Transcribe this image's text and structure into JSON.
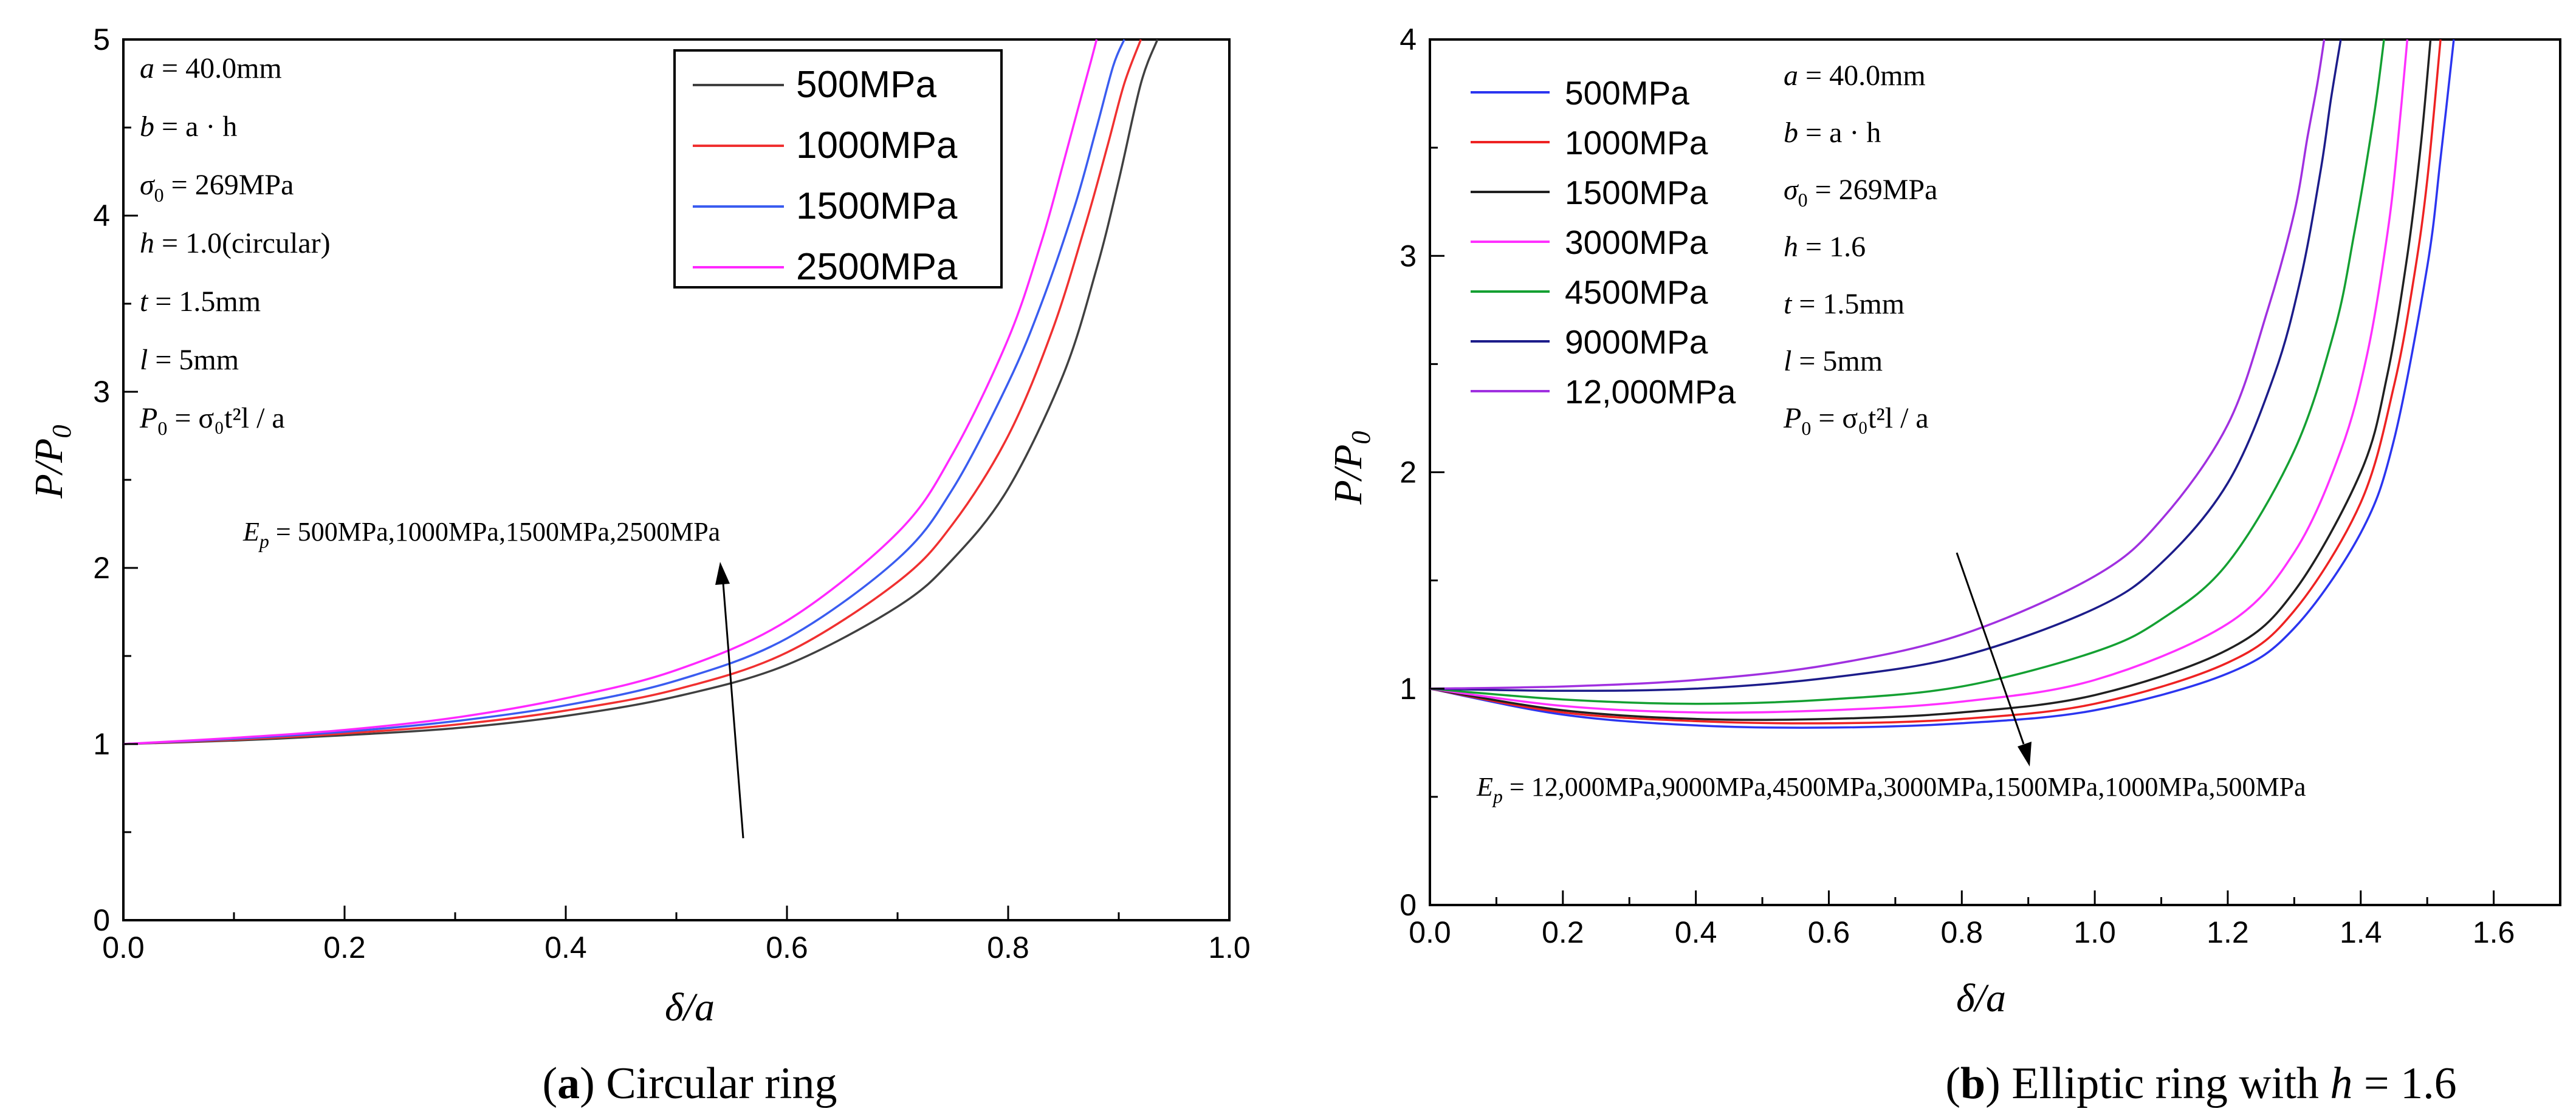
{
  "chart_data": [
    {
      "type": "line",
      "caption_label": "a",
      "caption_text": "Circular ring",
      "xlabel": "δ/a",
      "ylabel": "P/P",
      "ylabel_sub": "0",
      "xlim": [
        0,
        1.0
      ],
      "ylim": [
        0,
        5
      ],
      "xticks": [
        "0.0",
        "0.2",
        "0.4",
        "0.6",
        "0.8",
        "1.0"
      ],
      "yticks": [
        "0",
        "1",
        "2",
        "3",
        "4",
        "5"
      ],
      "legend_position": "top-right",
      "params": [
        {
          "var": "a",
          "rest": " = 40.0mm"
        },
        {
          "var": "b",
          "rest": " = a · h"
        },
        {
          "var": "σ",
          "sub": "0",
          "rest": " = 269MPa"
        },
        {
          "var": "h",
          "rest": " = 1.0(circular)"
        },
        {
          "var": "t",
          "rest": " = 1.5mm"
        },
        {
          "var": "l",
          "rest": " = 5mm"
        },
        {
          "var": "P",
          "sub": "0",
          "rest": " = σ₀t²l / a"
        }
      ],
      "annotation": {
        "var": "E",
        "sub": "p",
        "rest": " = 500MPa,1000MPa,1500MPa,2500MPa"
      },
      "series": [
        {
          "name": "500MPa",
          "color": "#404040",
          "x": [
            0,
            0.1,
            0.2,
            0.3,
            0.4,
            0.5,
            0.6,
            0.7,
            0.75,
            0.8,
            0.85,
            0.88,
            0.9,
            0.92,
            0.935
          ],
          "y": [
            1.0,
            1.02,
            1.05,
            1.09,
            1.16,
            1.27,
            1.45,
            1.78,
            2.05,
            2.45,
            3.1,
            3.7,
            4.2,
            4.75,
            5.0
          ]
        },
        {
          "name": "1000MPa",
          "color": "#f03030",
          "x": [
            0,
            0.1,
            0.2,
            0.3,
            0.4,
            0.5,
            0.6,
            0.7,
            0.75,
            0.8,
            0.84,
            0.87,
            0.89,
            0.905,
            0.92
          ],
          "y": [
            1.0,
            1.025,
            1.06,
            1.11,
            1.19,
            1.31,
            1.52,
            1.92,
            2.25,
            2.75,
            3.35,
            3.95,
            4.4,
            4.75,
            5.0
          ]
        },
        {
          "name": "1500MPa",
          "color": "#3a5cf0",
          "x": [
            0,
            0.1,
            0.2,
            0.3,
            0.4,
            0.5,
            0.6,
            0.7,
            0.75,
            0.8,
            0.83,
            0.86,
            0.88,
            0.895,
            0.905
          ],
          "y": [
            1.0,
            1.03,
            1.07,
            1.13,
            1.22,
            1.36,
            1.6,
            2.05,
            2.45,
            3.05,
            3.5,
            4.05,
            4.5,
            4.85,
            5.0
          ]
        },
        {
          "name": "2500MPa",
          "color": "#ff28ff",
          "x": [
            0,
            0.1,
            0.2,
            0.3,
            0.4,
            0.5,
            0.6,
            0.7,
            0.75,
            0.8,
            0.83,
            0.85,
            0.865,
            0.875,
            0.88
          ],
          "y": [
            1.0,
            1.035,
            1.08,
            1.15,
            1.26,
            1.42,
            1.7,
            2.2,
            2.65,
            3.3,
            3.85,
            4.3,
            4.65,
            4.88,
            5.0
          ]
        }
      ]
    },
    {
      "type": "line",
      "caption_label": "b",
      "caption_text": "Elliptic ring with",
      "caption_var": "h",
      "caption_tail": " = 1.6",
      "xlabel": "δ/a",
      "ylabel": "P/P",
      "ylabel_sub": "0",
      "xlim": [
        0,
        1.7
      ],
      "ylim": [
        0,
        4
      ],
      "xticks": [
        "0.0",
        "0.2",
        "0.4",
        "0.6",
        "0.8",
        "1.0",
        "1.2",
        "1.4",
        "1.6"
      ],
      "yticks": [
        "0",
        "1",
        "2",
        "3",
        "4"
      ],
      "legend_position": "top-left",
      "params": [
        {
          "var": "a",
          "rest": " = 40.0mm"
        },
        {
          "var": "b",
          "rest": " = a · h"
        },
        {
          "var": "σ",
          "sub": "0",
          "rest": " = 269MPa"
        },
        {
          "var": "h",
          "rest": " = 1.6"
        },
        {
          "var": "t",
          "rest": " = 1.5mm"
        },
        {
          "var": "l",
          "rest": " = 5mm"
        },
        {
          "var": "P",
          "sub": "0",
          "rest": " = σ₀t²l / a"
        }
      ],
      "annotation": {
        "var": "E",
        "sub": "p",
        "rest": " = 12,000MPa,9000MPa,4500MPa,3000MPa,1500MPa,1000MPa,500MPa"
      },
      "series": [
        {
          "name": "500MPa",
          "color": "#2b35f0",
          "x": [
            0,
            0.2,
            0.4,
            0.6,
            0.8,
            1.0,
            1.2,
            1.3,
            1.4,
            1.45,
            1.5,
            1.52,
            1.54
          ],
          "y": [
            1.0,
            0.88,
            0.83,
            0.82,
            0.84,
            0.9,
            1.07,
            1.28,
            1.72,
            2.15,
            2.95,
            3.45,
            4.0
          ]
        },
        {
          "name": "1000MPa",
          "color": "#ee2222",
          "x": [
            0,
            0.2,
            0.4,
            0.6,
            0.8,
            1.0,
            1.2,
            1.3,
            1.4,
            1.45,
            1.48,
            1.5,
            1.52
          ],
          "y": [
            1.0,
            0.89,
            0.85,
            0.84,
            0.86,
            0.93,
            1.12,
            1.36,
            1.86,
            2.4,
            2.9,
            3.35,
            4.0
          ]
        },
        {
          "name": "1500MPa",
          "color": "#202020",
          "x": [
            0,
            0.2,
            0.4,
            0.6,
            0.8,
            1.0,
            1.2,
            1.3,
            1.4,
            1.44,
            1.47,
            1.49,
            1.505
          ],
          "y": [
            1.0,
            0.9,
            0.86,
            0.86,
            0.89,
            0.97,
            1.18,
            1.45,
            2.0,
            2.45,
            3.0,
            3.5,
            4.0
          ]
        },
        {
          "name": "3000MPa",
          "color": "#ff30ff",
          "x": [
            0,
            0.2,
            0.4,
            0.6,
            0.8,
            1.0,
            1.2,
            1.3,
            1.37,
            1.41,
            1.44,
            1.455,
            1.47
          ],
          "y": [
            1.0,
            0.92,
            0.89,
            0.9,
            0.94,
            1.04,
            1.3,
            1.63,
            2.1,
            2.55,
            3.1,
            3.5,
            4.0
          ]
        },
        {
          "name": "4500MPa",
          "color": "#14a032",
          "x": [
            0,
            0.2,
            0.4,
            0.6,
            0.8,
            1.0,
            1.1,
            1.2,
            1.3,
            1.36,
            1.39,
            1.42,
            1.435
          ],
          "y": [
            1.0,
            0.95,
            0.93,
            0.95,
            1.01,
            1.17,
            1.32,
            1.58,
            2.1,
            2.65,
            3.1,
            3.65,
            4.0
          ]
        },
        {
          "name": "9000MPa",
          "color": "#1c1c8a",
          "x": [
            0,
            0.2,
            0.4,
            0.6,
            0.8,
            1.0,
            1.1,
            1.2,
            1.27,
            1.31,
            1.34,
            1.355,
            1.37
          ],
          "y": [
            1.0,
            0.99,
            1.0,
            1.05,
            1.15,
            1.37,
            1.58,
            1.95,
            2.45,
            2.9,
            3.4,
            3.72,
            4.0
          ]
        },
        {
          "name": "12,000MPa",
          "color": "#a030e0",
          "x": [
            0,
            0.2,
            0.4,
            0.6,
            0.8,
            1.0,
            1.1,
            1.2,
            1.26,
            1.3,
            1.32,
            1.335,
            1.345
          ],
          "y": [
            1.0,
            1.01,
            1.04,
            1.11,
            1.25,
            1.52,
            1.78,
            2.22,
            2.75,
            3.2,
            3.55,
            3.8,
            4.0
          ]
        }
      ]
    }
  ]
}
